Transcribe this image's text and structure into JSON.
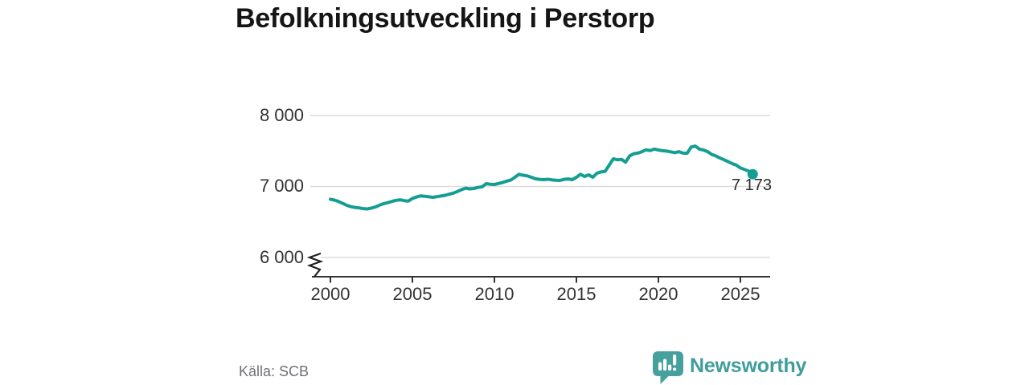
{
  "chart_data": {
    "type": "line",
    "title": "Befolkningsutveckling i Perstorp",
    "xlabel": "",
    "ylabel": "",
    "x": [
      2000,
      2000.25,
      2000.5,
      2000.75,
      2001,
      2001.25,
      2001.5,
      2001.75,
      2002,
      2002.25,
      2002.5,
      2002.75,
      2003,
      2003.25,
      2003.5,
      2003.75,
      2004,
      2004.25,
      2004.5,
      2004.75,
      2005,
      2005.25,
      2005.5,
      2005.75,
      2006,
      2006.25,
      2006.5,
      2006.75,
      2007,
      2007.25,
      2007.5,
      2007.75,
      2008,
      2008.25,
      2008.5,
      2008.75,
      2009,
      2009.25,
      2009.5,
      2009.75,
      2010,
      2010.25,
      2010.5,
      2010.75,
      2011,
      2011.25,
      2011.5,
      2011.75,
      2012,
      2012.25,
      2012.5,
      2012.75,
      2013,
      2013.25,
      2013.5,
      2013.75,
      2014,
      2014.25,
      2014.5,
      2014.75,
      2015,
      2015.25,
      2015.5,
      2015.75,
      2016,
      2016.25,
      2016.5,
      2016.75,
      2017,
      2017.25,
      2017.5,
      2017.75,
      2018,
      2018.25,
      2018.5,
      2018.75,
      2019,
      2019.25,
      2019.5,
      2019.75,
      2020,
      2020.25,
      2020.5,
      2020.75,
      2021,
      2021.25,
      2021.5,
      2021.75,
      2022,
      2022.25,
      2022.5,
      2022.75,
      2023,
      2023.25,
      2023.5,
      2023.75,
      2024,
      2024.25,
      2024.5,
      2024.75,
      2025,
      2025.25,
      2025.5,
      2025.75
    ],
    "values": [
      6820,
      6808,
      6788,
      6762,
      6735,
      6716,
      6705,
      6698,
      6688,
      6684,
      6696,
      6712,
      6738,
      6758,
      6772,
      6790,
      6804,
      6812,
      6800,
      6794,
      6832,
      6852,
      6868,
      6862,
      6854,
      6848,
      6856,
      6866,
      6876,
      6892,
      6906,
      6930,
      6956,
      6976,
      6966,
      6972,
      6986,
      6996,
      7040,
      7032,
      7028,
      7042,
      7056,
      7076,
      7090,
      7130,
      7172,
      7158,
      7150,
      7130,
      7108,
      7100,
      7096,
      7102,
      7094,
      7088,
      7086,
      7100,
      7106,
      7096,
      7130,
      7172,
      7141,
      7164,
      7130,
      7186,
      7206,
      7212,
      7300,
      7390,
      7376,
      7382,
      7342,
      7432,
      7462,
      7470,
      7490,
      7516,
      7506,
      7526,
      7514,
      7504,
      7498,
      7488,
      7477,
      7490,
      7470,
      7468,
      7556,
      7570,
      7526,
      7514,
      7490,
      7452,
      7430,
      7402,
      7376,
      7350,
      7322,
      7300,
      7262,
      7240,
      7217,
      7173
    ],
    "end_value": 7173,
    "end_label": "7 173",
    "x_ticks": [
      2000,
      2005,
      2010,
      2015,
      2020,
      2025
    ],
    "x_tick_labels": [
      "2000",
      "2005",
      "2010",
      "2015",
      "2020",
      "2025"
    ],
    "y_ticks": [
      6000,
      7000,
      8000
    ],
    "y_tick_labels": [
      "6 000",
      "7 000",
      "8 000"
    ],
    "xlim": [
      1999.6,
      2026.8
    ],
    "ylim": [
      6000,
      8150
    ],
    "grid": "horizontal",
    "legend": "none",
    "axis_break": true,
    "line_color": "#149e92"
  },
  "source": "Källa: SCB",
  "branding": {
    "name": "Newsworthy",
    "icon": "bar-chart-speech-bubble-icon",
    "icon_color": "#46a09e",
    "text_color": "#3f9d9c"
  },
  "colors": {
    "line": "#149e92",
    "grid": "#dcdcdc",
    "axis": "#333333",
    "title_text": "#151515",
    "tick_text": "#333333",
    "source_text": "#6e7076",
    "background": "#ffffff"
  }
}
